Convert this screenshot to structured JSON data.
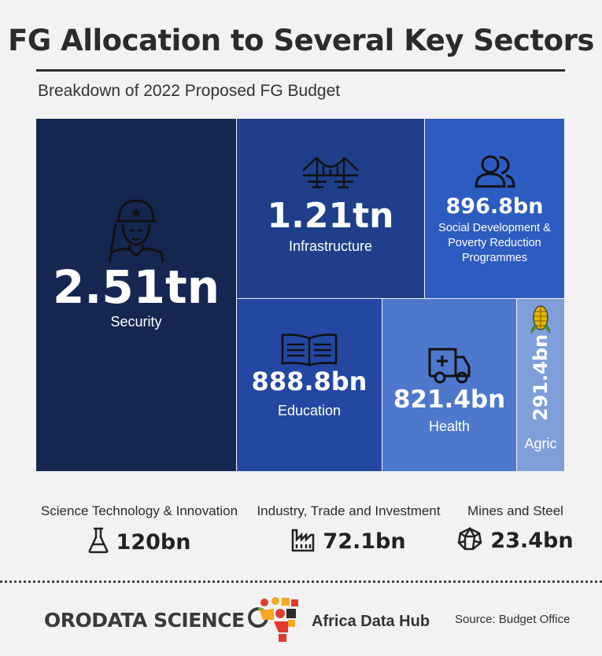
{
  "header": {
    "title": "FG Allocation to Several Key Sectors",
    "subtitle": "Breakdown of 2022 Proposed FG Budget"
  },
  "chart_data": {
    "type": "treemap",
    "title": "FG Allocation to Several Key Sectors",
    "subtitle": "Breakdown of 2022 Proposed FG Budget",
    "unit": "NGN",
    "items": [
      {
        "label": "Security",
        "value_label": "2.51tn",
        "value": 2510,
        "icon": "soldier-icon",
        "color": "#152651"
      },
      {
        "label": "Infrastructure",
        "value_label": "1.21tn",
        "value": 1210,
        "icon": "bridge-icon",
        "color": "#1f3f8a"
      },
      {
        "label": "Social Development & Poverty Reduction Programmes",
        "value_label": "896.8bn",
        "value": 896.8,
        "icon": "people-icon",
        "color": "#2d5cc0"
      },
      {
        "label": "Education",
        "value_label": "888.8bn",
        "value": 888.8,
        "icon": "book-icon",
        "color": "#2447a2"
      },
      {
        "label": "Health",
        "value_label": "821.4bn",
        "value": 821.4,
        "icon": "ambulance-icon",
        "color": "#4d78cc"
      },
      {
        "label": "Agric",
        "value_label": "291.4bn",
        "value": 291.4,
        "icon": "corn-icon",
        "color": "#7f9fdb"
      }
    ],
    "minor_items": [
      {
        "label": "Science Technology & Innovation",
        "value_label": "120bn",
        "value": 120,
        "icon": "flask-icon"
      },
      {
        "label": "Industry, Trade and Investment",
        "value_label": "72.1bn",
        "value": 72.1,
        "icon": "factory-icon"
      },
      {
        "label": "Mines and Steel",
        "value_label": "23.4bn",
        "value": 23.4,
        "icon": "mineral-icon"
      }
    ]
  },
  "footer": {
    "logo1_text": "ORODATA SCIENCE",
    "logo2_text": "Africa Data Hub",
    "source": "Source: Budget Office"
  }
}
